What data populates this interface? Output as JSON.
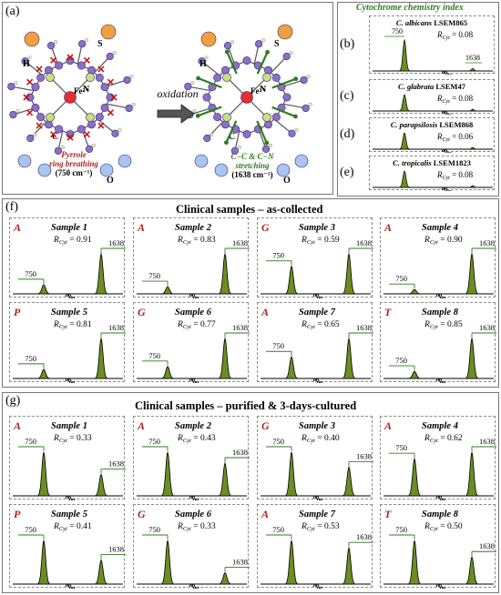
{
  "panel_labels": {
    "a": "(a)",
    "b": "(b)",
    "c": "(c)",
    "d": "(d)",
    "e": "(e)",
    "f": "(f)",
    "g": "(g)"
  },
  "molecule": {
    "oxidation": "oxidation",
    "fe2": "Fe²⁺",
    "fe3": "Fe³⁺",
    "atom_S": "S",
    "atom_H": "H",
    "atom_N": "N",
    "atom_C": "C",
    "atom_O": "O",
    "pyrrole_line1": "Pyrrole",
    "pyrrole_line2": "ring breathing",
    "pyrrole_line3": "(750 cm⁻¹)",
    "stretch_line1": "C−C & C−N",
    "stretch_line2": "stretching",
    "stretch_line3": "(1638 cm⁻¹)"
  },
  "cytochrome": {
    "title": "Cytochrome chemistry index",
    "panels": [
      {
        "label": "(b)",
        "species": "C. albicans",
        "strain": "LSEM865",
        "r_label": "R",
        "r_sub": "Cyt",
        "r_value": "= 0.08"
      },
      {
        "label": "(c)",
        "species": "C. glabrata",
        "strain": "LSEM47",
        "r_label": "R",
        "r_sub": "Cyt",
        "r_value": "= 0.08"
      },
      {
        "label": "(d)",
        "species": "C. parapsilosis",
        "strain": "LSEM868",
        "r_label": "R",
        "r_sub": "Cyt",
        "r_value": "= 0.06"
      },
      {
        "label": "(e)",
        "species": "C. tropicalis",
        "strain": "LSEM1823",
        "r_label": "R",
        "r_sub": "Cyt",
        "r_value": "= 0.08"
      }
    ]
  },
  "section_f": {
    "title": "Clinical samples – as-collected"
  },
  "section_g": {
    "title": "Clinical samples – purified & 3-days-cultured"
  },
  "chart_data": [
    {
      "type": "area",
      "title": "Cytochrome chemistry index",
      "peak_labels": [
        "750",
        "1638"
      ],
      "series": [
        {
          "name": "C. albicans LSEM865",
          "values": [
            1.0,
            0.08
          ]
        },
        {
          "name": "C. glabrata LSEM47",
          "values": [
            1.0,
            0.08
          ]
        },
        {
          "name": "C. parapsilosis LSEM868",
          "values": [
            1.0,
            0.06
          ]
        },
        {
          "name": "C. tropicalis LSEM1823",
          "values": [
            1.0,
            0.08
          ]
        }
      ]
    },
    {
      "type": "area",
      "title": "Clinical samples – as-collected",
      "peak_labels": [
        "750",
        "1638"
      ],
      "samples": [
        {
          "letter": "A",
          "name": "Sample 1",
          "r_label": "R",
          "r_sub": "Cyt",
          "r_value": "= 0.91",
          "peaks": [
            0.23,
            1.0
          ]
        },
        {
          "letter": "A",
          "name": "Sample 2",
          "r_label": "R",
          "r_sub": "Cyt",
          "r_value": "= 0.83",
          "peaks": [
            0.18,
            1.0
          ]
        },
        {
          "letter": "G",
          "name": "Sample 3",
          "r_label": "R",
          "r_sub": "Cyt",
          "r_value": "= 0.59",
          "peaks": [
            0.69,
            1.0
          ]
        },
        {
          "letter": "A",
          "name": "Sample 4",
          "r_label": "R",
          "r_sub": "Cyt",
          "r_value": "= 0.90",
          "peaks": [
            0.11,
            1.0
          ]
        },
        {
          "letter": "P",
          "name": "Sample 5",
          "r_label": "R",
          "r_sub": "Cyt",
          "r_value": "= 0.81",
          "peaks": [
            0.23,
            1.0
          ]
        },
        {
          "letter": "G",
          "name": "Sample 6",
          "r_label": "R",
          "r_sub": "Cyt",
          "r_value": "= 0.77",
          "peaks": [
            0.3,
            1.0
          ]
        },
        {
          "letter": "A",
          "name": "Sample 7",
          "r_label": "R",
          "r_sub": "Cyt",
          "r_value": "= 0.65",
          "peaks": [
            0.54,
            1.0
          ]
        },
        {
          "letter": "T",
          "name": "Sample 8",
          "r_label": "R",
          "r_sub": "Cyt",
          "r_value": "= 0.85",
          "peaks": [
            0.18,
            1.0
          ]
        }
      ]
    },
    {
      "type": "area",
      "title": "Clinical samples – purified & 3-days-cultured",
      "peak_labels": [
        "750",
        "1638"
      ],
      "samples": [
        {
          "letter": "A",
          "name": "Sample 1",
          "r_label": "R",
          "r_sub": "Cyt",
          "r_value": "= 0.33",
          "peaks": [
            1.0,
            0.49
          ]
        },
        {
          "letter": "A",
          "name": "Sample 2",
          "r_label": "R",
          "r_sub": "Cyt",
          "r_value": "= 0.43",
          "peaks": [
            1.0,
            0.75
          ]
        },
        {
          "letter": "G",
          "name": "Sample 3",
          "r_label": "R",
          "r_sub": "Cyt",
          "r_value": "= 0.40",
          "peaks": [
            1.0,
            0.66
          ]
        },
        {
          "letter": "A",
          "name": "Sample 4",
          "r_label": "R",
          "r_sub": "Cyt",
          "r_value": "= 0.62",
          "peaks": [
            0.85,
            1.0
          ]
        },
        {
          "letter": "P",
          "name": "Sample 5",
          "r_label": "R",
          "r_sub": "Cyt",
          "r_value": "= 0.41",
          "peaks": [
            1.0,
            0.55
          ]
        },
        {
          "letter": "G",
          "name": "Sample 6",
          "r_label": "R",
          "r_sub": "Cyt",
          "r_value": "= 0.33",
          "peaks": [
            1.0,
            0.26
          ]
        },
        {
          "letter": "A",
          "name": "Sample 7",
          "r_label": "R",
          "r_sub": "Cyt",
          "r_value": "= 0.53",
          "peaks": [
            1.0,
            0.83
          ]
        },
        {
          "letter": "T",
          "name": "Sample 8",
          "r_label": "R",
          "r_sub": "Cyt",
          "r_value": "= 0.50",
          "peaks": [
            1.0,
            0.62
          ]
        }
      ]
    }
  ],
  "colors": {
    "peak_fill": "#6b8e23",
    "peak_green": "#2e7d1e",
    "letter_red": "#b22222",
    "atom_purple": "#8a70c8",
    "atom_orange": "#f0a040",
    "atom_blue": "#a8c4f0",
    "atom_green": "#c8e080",
    "atom_red": "#e03030"
  }
}
